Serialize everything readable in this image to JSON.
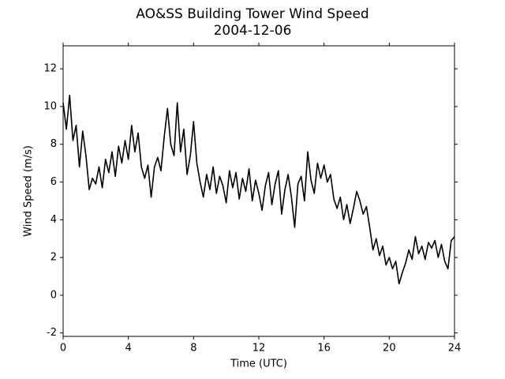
{
  "chart_data": {
    "type": "line",
    "title": "AO&SS Building Tower Wind Speed",
    "subtitle": "2004-12-06",
    "x_label": "Time (UTC)",
    "y_label": "Wind Speed (m/s)",
    "xlim": [
      0,
      24
    ],
    "xticks": [
      0,
      4,
      8,
      12,
      16,
      20,
      24
    ],
    "ylim": [
      -2.18,
      13.22
    ],
    "yticks": [
      -2,
      0,
      2,
      4,
      6,
      8,
      10,
      12
    ],
    "x": [
      0,
      0.2,
      0.4,
      0.6,
      0.8,
      1,
      1.2,
      1.4,
      1.6,
      1.8,
      2,
      2.2,
      2.4,
      2.6,
      2.8,
      3,
      3.2,
      3.4,
      3.6,
      3.8,
      4,
      4.2,
      4.4,
      4.6,
      4.8,
      5,
      5.2,
      5.4,
      5.6,
      5.8,
      6,
      6.2,
      6.4,
      6.6,
      6.8,
      7,
      7.2,
      7.4,
      7.6,
      7.8,
      8,
      8.2,
      8.4,
      8.6,
      8.8,
      9,
      9.2,
      9.4,
      9.6,
      9.8,
      10,
      10.2,
      10.4,
      10.6,
      10.8,
      11,
      11.2,
      11.4,
      11.6,
      11.8,
      12,
      12.2,
      12.4,
      12.6,
      12.8,
      13,
      13.2,
      13.4,
      13.6,
      13.8,
      14,
      14.2,
      14.4,
      14.6,
      14.8,
      15,
      15.2,
      15.4,
      15.6,
      15.8,
      16,
      16.2,
      16.4,
      16.6,
      16.8,
      17,
      17.2,
      17.4,
      17.6,
      17.8,
      18,
      18.2,
      18.4,
      18.6,
      18.8,
      19,
      19.2,
      19.4,
      19.6,
      19.8,
      20,
      20.2,
      20.4,
      20.6,
      20.8,
      21,
      21.2,
      21.4,
      21.6,
      21.8,
      22,
      22.2,
      22.4,
      22.6,
      22.8,
      23,
      23.2,
      23.4,
      23.6,
      23.8,
      24
    ],
    "series": [
      {
        "name": "Wind Speed",
        "color": "#000000",
        "values": [
          10.2,
          8.8,
          10.6,
          8.2,
          9.0,
          6.8,
          8.7,
          7.4,
          5.6,
          6.2,
          5.9,
          6.8,
          5.7,
          7.2,
          6.5,
          7.6,
          6.3,
          7.9,
          7.0,
          8.2,
          7.2,
          9.0,
          7.6,
          8.6,
          6.8,
          6.2,
          6.9,
          5.2,
          6.8,
          7.3,
          6.6,
          8.4,
          9.9,
          8.0,
          7.4,
          10.2,
          7.6,
          8.8,
          6.4,
          7.4,
          9.2,
          7.0,
          6.0,
          5.2,
          6.4,
          5.6,
          6.8,
          5.4,
          6.3,
          5.8,
          4.9,
          6.6,
          5.7,
          6.5,
          5.1,
          6.2,
          5.5,
          6.7,
          5.0,
          6.1,
          5.4,
          4.5,
          5.8,
          6.5,
          4.8,
          5.9,
          6.6,
          4.3,
          5.6,
          6.4,
          5.2,
          3.6,
          5.9,
          6.3,
          5.0,
          7.6,
          6.1,
          5.4,
          7.0,
          6.2,
          6.9,
          6.0,
          6.4,
          5.1,
          4.6,
          5.2,
          4.0,
          4.8,
          3.8,
          4.6,
          5.5,
          5.0,
          4.3,
          4.7,
          3.6,
          2.4,
          3.0,
          2.1,
          2.6,
          1.6,
          2.0,
          1.4,
          1.8,
          0.6,
          1.2,
          1.7,
          2.4,
          1.9,
          3.1,
          2.2,
          2.6,
          1.9,
          2.8,
          2.5,
          2.9,
          2.0,
          2.7,
          1.8,
          1.4,
          2.9,
          3.1
        ]
      }
    ]
  }
}
